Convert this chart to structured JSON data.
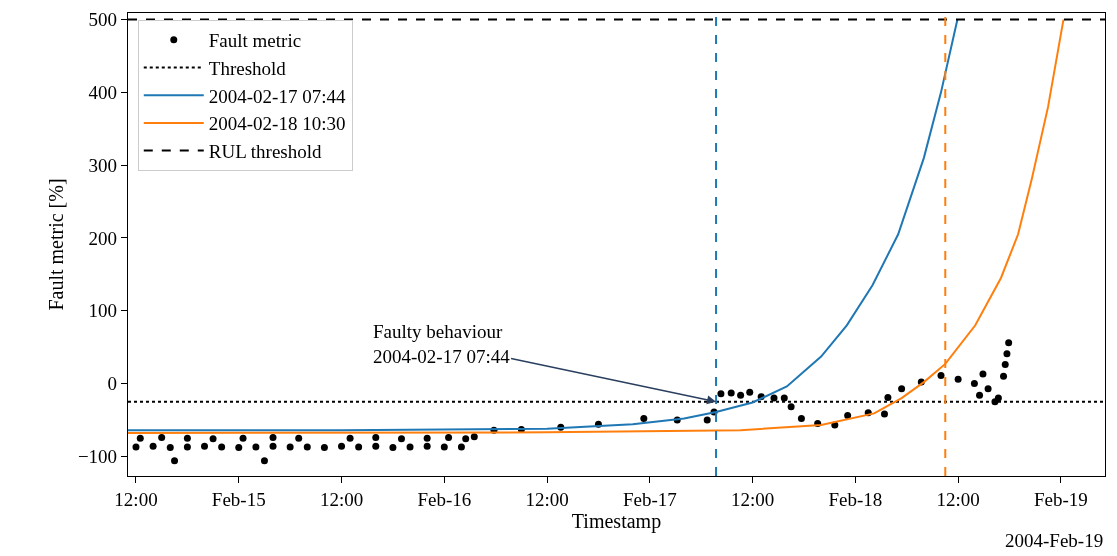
{
  "chart_data": {
    "type": "scatter",
    "xlabel": "Timestamp",
    "ylabel": "Fault metric [%]",
    "xlim": [
      "2004-02-14T11:04",
      "2004-02-19T05:09"
    ],
    "ylim": [
      -127,
      509
    ],
    "xticks": [
      {
        "value": "2004-02-14T12:00",
        "label": "12:00"
      },
      {
        "value": "2004-02-15T00:00",
        "label": "Feb-15"
      },
      {
        "value": "2004-02-15T12:00",
        "label": "12:00"
      },
      {
        "value": "2004-02-16T00:00",
        "label": "Feb-16"
      },
      {
        "value": "2004-02-16T12:00",
        "label": "12:00"
      },
      {
        "value": "2004-02-17T00:00",
        "label": "Feb-17"
      },
      {
        "value": "2004-02-17T12:00",
        "label": "12:00"
      },
      {
        "value": "2004-02-18T00:00",
        "label": "Feb-18"
      },
      {
        "value": "2004-02-18T12:00",
        "label": "12:00"
      },
      {
        "value": "2004-02-19T00:00",
        "label": "Feb-19"
      }
    ],
    "yticks": [
      {
        "value": -100,
        "label": "−100"
      },
      0,
      100,
      200,
      300,
      400,
      500
    ],
    "legend": "top left",
    "series": [
      {
        "name": "Fault metric",
        "marker": "circle",
        "color": "#000000",
        "x": [
          "2004-02-14T12:00",
          "2004-02-14T14:00",
          "2004-02-14T16:00",
          "2004-02-14T18:00",
          "2004-02-14T20:00",
          "2004-02-14T22:00",
          "2004-02-15T00:00",
          "2004-02-15T02:00",
          "2004-02-15T04:00",
          "2004-02-15T06:00",
          "2004-02-15T08:00",
          "2004-02-15T10:00",
          "2004-02-15T12:00",
          "2004-02-15T14:00",
          "2004-02-15T16:00",
          "2004-02-15T18:00",
          "2004-02-15T20:00",
          "2004-02-15T22:00",
          "2004-02-16T00:00",
          "2004-02-16T02:00",
          "2004-02-14T12:30",
          "2004-02-14T15:00",
          "2004-02-14T18:00",
          "2004-02-14T21:00",
          "2004-02-15T00:30",
          "2004-02-15T04:00",
          "2004-02-15T07:00",
          "2004-02-15T13:00",
          "2004-02-15T16:00",
          "2004-02-15T19:00",
          "2004-02-15T22:00",
          "2004-02-16T00:30",
          "2004-02-16T02:30",
          "2004-02-14T16:30",
          "2004-02-15T03:00",
          "2004-02-16T03:30",
          "2004-02-16T05:48",
          "2004-02-16T09:00",
          "2004-02-16T13:36",
          "2004-02-16T18:00",
          "2004-02-16T23:18",
          "2004-02-17T03:12",
          "2004-02-17T06:42",
          "2004-02-17T07:30",
          "2004-02-17T08:18",
          "2004-02-17T09:30",
          "2004-02-17T10:36",
          "2004-02-17T11:40",
          "2004-02-17T13:00",
          "2004-02-17T14:30",
          "2004-02-17T15:42",
          "2004-02-17T16:30",
          "2004-02-17T17:42",
          "2004-02-17T19:36",
          "2004-02-17T21:36",
          "2004-02-17T23:06",
          "2004-02-18T01:30",
          "2004-02-18T03:24",
          "2004-02-18T03:48",
          "2004-02-18T05:24",
          "2004-02-18T07:42",
          "2004-02-18T10:00",
          "2004-02-18T12:00",
          "2004-02-18T13:54",
          "2004-02-18T14:30",
          "2004-02-18T14:54",
          "2004-02-18T15:30",
          "2004-02-18T16:18",
          "2004-02-18T16:42",
          "2004-02-18T17:18",
          "2004-02-18T17:30",
          "2004-02-18T17:42",
          "2004-02-18T17:54"
        ],
        "values": [
          -87,
          -86,
          -88,
          -87,
          -86,
          -87,
          -88,
          -87,
          -86,
          -87,
          -87,
          -88,
          -86,
          -87,
          -86,
          -88,
          -87,
          -86,
          -87,
          -87,
          -75,
          -74,
          -75,
          -76,
          -75,
          -74,
          -75,
          -75,
          -74,
          -76,
          -75,
          -74,
          -76,
          -106,
          -106,
          -73,
          -64,
          -63,
          -60,
          -56,
          -48,
          -50,
          -50,
          -39,
          -14,
          -13,
          -16,
          -12,
          -18,
          -20,
          -20,
          -32,
          -48,
          -55,
          -57,
          -44,
          -40,
          -42,
          -19,
          -7,
          2,
          11,
          6,
          0,
          -16,
          13,
          -7,
          -25,
          -20,
          10,
          26,
          41,
          56
        ]
      },
      {
        "name": "Threshold",
        "type": "line",
        "line_style": "dotted",
        "color": "#000000",
        "x": [
          "2004-02-14T11:04",
          "2004-02-19T05:09"
        ],
        "values": [
          -25,
          -25
        ]
      },
      {
        "name": "2004-02-17 07:44",
        "type": "line",
        "line_style": "solid",
        "color": "#1f77b4",
        "x": [
          "2004-02-14T11:04",
          "2004-02-15T12:00",
          "2004-02-16T12:00",
          "2004-02-16T22:00",
          "2004-02-17T04:00",
          "2004-02-17T07:44",
          "2004-02-17T12:00",
          "2004-02-17T16:00",
          "2004-02-17T20:00",
          "2004-02-17T23:00",
          "2004-02-18T02:00",
          "2004-02-18T05:00",
          "2004-02-18T08:00",
          "2004-02-18T10:00",
          "2004-02-18T11:55"
        ],
        "values": [
          -64,
          -64,
          -62,
          -56,
          -48,
          -39,
          -26,
          -4,
          37,
          80,
          135,
          205,
          310,
          400,
          500
        ]
      },
      {
        "name": "2004-02-18 10:30",
        "type": "line",
        "line_style": "solid",
        "color": "#ff7f0e",
        "x": [
          "2004-02-14T11:04",
          "2004-02-16T12:00",
          "2004-02-17T10:36",
          "2004-02-17T20:00",
          "2004-02-18T02:12",
          "2004-02-18T05:24",
          "2004-02-18T08:00",
          "2004-02-18T10:30",
          "2004-02-18T14:00",
          "2004-02-18T17:00",
          "2004-02-18T19:00",
          "2004-02-18T20:36",
          "2004-02-18T22:30",
          "2004-02-19T00:18"
        ],
        "values": [
          -68,
          -67,
          -64,
          -57,
          -41,
          -20,
          2,
          27,
          80,
          145,
          205,
          281,
          380,
          500
        ]
      },
      {
        "name": "RUL threshold",
        "type": "line",
        "line_style": "dashed",
        "color": "#000000",
        "x": [
          "2004-02-14T11:04",
          "2004-02-19T05:09"
        ],
        "values": [
          500,
          500
        ]
      }
    ],
    "ref_lines": [
      {
        "axis": "x",
        "value": "2004-02-17T07:44",
        "label": null,
        "color": "#1f77b4",
        "line_style": "dashed"
      },
      {
        "axis": "x",
        "value": "2004-02-18T10:30",
        "label": null,
        "color": "#ff7f0e",
        "line_style": "dashed"
      }
    ],
    "annotations": [
      {
        "text": "Faulty behaviour\n2004-02-17 07:44",
        "x": "2004-02-17T07:44",
        "y": -25
      },
      "2004-Feb-19"
    ]
  }
}
